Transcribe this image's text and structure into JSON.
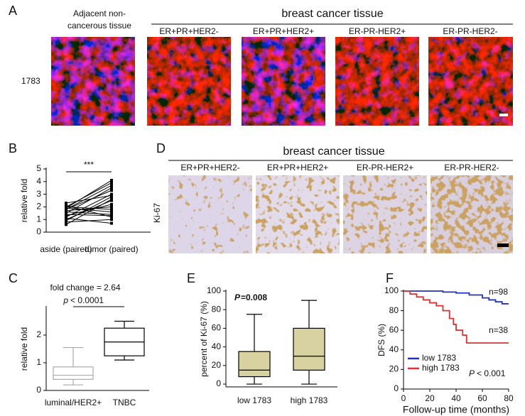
{
  "panel_a": {
    "label": "A",
    "control_line1": "Adjacent non-",
    "control_line2": "cancerous tissue",
    "group_title": "breast cancer tissue",
    "subtypes": [
      "ER+PR+HER2-",
      "ER+PR+HER2+",
      "ER-PR-HER2+",
      "ER-PR-HER2-"
    ],
    "row_label": "1783"
  },
  "panel_d": {
    "label": "D",
    "group_title": "breast cancer tissue",
    "subtypes": [
      "ER+PR+HER2-",
      "ER+PR+HER2+",
      "ER-PR-HER2+",
      "ER-PR-HER2-"
    ],
    "row_label": "Ki-67"
  },
  "chart_data": [
    {
      "type": "paired",
      "label": "B",
      "ylabel": "relative fold",
      "categories": [
        "aside (paired)",
        "tumor (paired)"
      ],
      "pairs": [
        [
          1.9,
          4.1
        ],
        [
          2.0,
          3.9
        ],
        [
          1.8,
          3.7
        ],
        [
          1.5,
          3.5
        ],
        [
          1.2,
          3.0
        ],
        [
          0.9,
          2.8
        ],
        [
          0.6,
          2.6
        ],
        [
          1.0,
          2.5
        ],
        [
          1.3,
          2.2
        ],
        [
          1.7,
          2.0
        ],
        [
          2.0,
          1.8
        ],
        [
          1.9,
          1.6
        ],
        [
          1.6,
          1.4
        ],
        [
          1.4,
          1.3
        ],
        [
          2.1,
          1.2
        ],
        [
          0.8,
          1.0
        ],
        [
          1.1,
          0.7
        ],
        [
          1.8,
          3.3
        ],
        [
          2.3,
          2.9
        ]
      ],
      "color": "#000000",
      "annotations": [
        "***"
      ],
      "ylim": [
        0,
        5
      ],
      "yticks": [
        0,
        1,
        2,
        3,
        4,
        5
      ]
    },
    {
      "type": "box",
      "label": "C",
      "ylabel": "relative fold",
      "categories": [
        "luminal/HER2+",
        "TNBC"
      ],
      "boxes": [
        {
          "min": 0.2,
          "q1": 0.4,
          "median": 0.55,
          "q3": 0.85,
          "max": 1.55,
          "color": "#aaaaaa",
          "fill": "#ffffff"
        },
        {
          "min": 1.1,
          "q1": 1.25,
          "median": 1.75,
          "q3": 2.25,
          "max": 2.5,
          "color": "#000000",
          "fill": "#ffffff"
        }
      ],
      "annotations": [
        "fold change = 2.64",
        "p",
        "< 0.0001"
      ],
      "ylim": [
        0,
        3
      ],
      "yticks": [
        0,
        1,
        2
      ]
    },
    {
      "type": "box",
      "label": "E",
      "ylabel": "percent of Ki-67 (%)",
      "categories": [
        "low 1783",
        "high 1783"
      ],
      "boxes": [
        {
          "min": 0,
          "q1": 8,
          "median": 15,
          "q3": 35,
          "max": 75,
          "color": "#000000",
          "fill": "#d8d2a0"
        },
        {
          "min": 0,
          "q1": 15,
          "median": 30,
          "q3": 60,
          "max": 90,
          "color": "#000000",
          "fill": "#d8d2a0"
        }
      ],
      "annotations": [
        "P",
        "=0.008"
      ],
      "ylim": [
        -3,
        100
      ],
      "yticks": [
        0,
        20,
        40,
        60,
        80,
        100
      ]
    },
    {
      "type": "line",
      "step": true,
      "label": "F",
      "ylabel": "DFS (%)",
      "xlabel": "Follow-up time (months)",
      "series": [
        {
          "name": "low 1783",
          "color": "#2233bb",
          "x": [
            0,
            30,
            40,
            50,
            60,
            65,
            70,
            75,
            80
          ],
          "values": [
            100,
            99,
            98,
            96,
            93,
            91,
            89,
            87,
            87
          ]
        },
        {
          "name": "high 1783",
          "color": "#e03030",
          "x": [
            0,
            5,
            10,
            15,
            20,
            25,
            30,
            35,
            38,
            40,
            45,
            48,
            55,
            80
          ],
          "values": [
            100,
            97,
            94,
            91,
            88,
            85,
            80,
            72,
            66,
            60,
            55,
            47,
            47,
            47
          ]
        }
      ],
      "annotations": [
        "n=98",
        "n=38",
        "P",
        "< 0.001"
      ],
      "legend": "lower left",
      "xlim": [
        0,
        80
      ],
      "xticks": [
        0,
        20,
        40,
        60,
        80
      ],
      "ylim": [
        0,
        100
      ],
      "yticks": [
        0,
        20,
        40,
        60,
        80,
        100
      ]
    }
  ]
}
